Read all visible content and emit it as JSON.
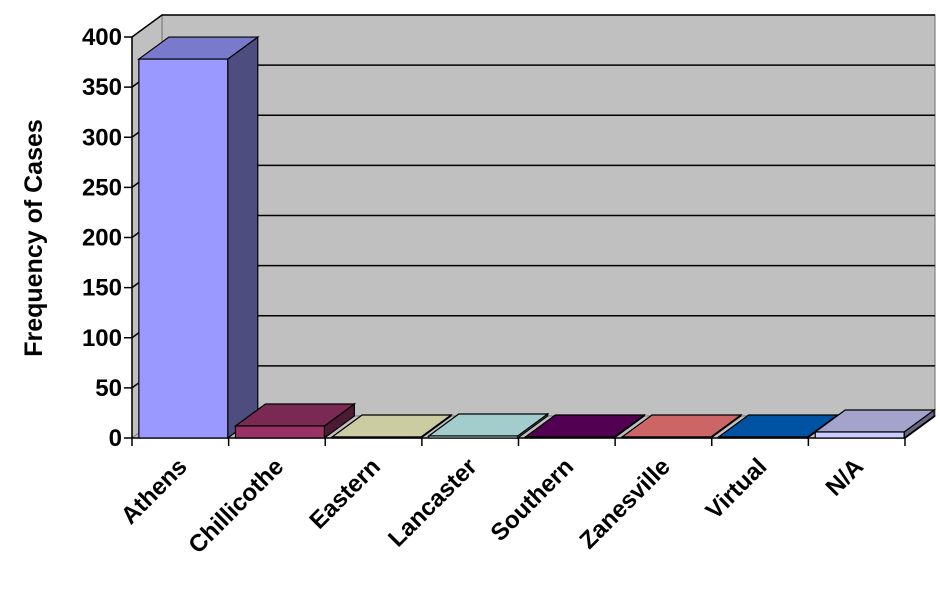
{
  "chart_data": {
    "type": "bar",
    "three_d": true,
    "title": "",
    "xlabel": "",
    "ylabel": "Frequency of Cases",
    "ylim": [
      0,
      400
    ],
    "yticks": [
      0,
      50,
      100,
      150,
      200,
      250,
      300,
      350,
      400
    ],
    "grid": true,
    "legend": "none",
    "categories": [
      "Athens",
      "Chillicothe",
      "Eastern",
      "Lancaster",
      "Southern",
      "Zanesville",
      "Virtual",
      "N/A"
    ],
    "values": [
      378,
      12,
      1,
      2,
      1,
      1,
      1,
      6
    ],
    "colors": [
      "#9999ff",
      "#993366",
      "#ffffcc",
      "#ccffff",
      "#660066",
      "#ff8080",
      "#0066cc",
      "#ccccff"
    ],
    "wall_color": "#c0c0c0"
  }
}
